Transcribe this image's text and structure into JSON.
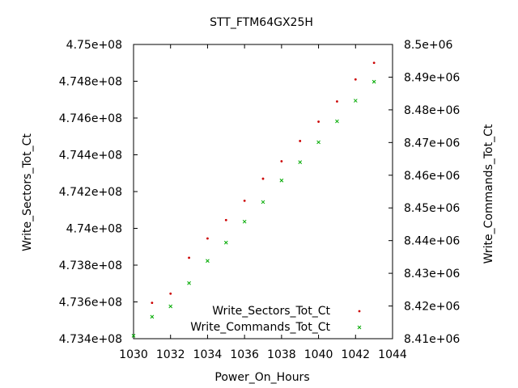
{
  "chart_data": {
    "type": "scatter",
    "title": "STT_FTM64GX25H",
    "xlabel": "Power_On_Hours",
    "ylabel": "Write_Sectors_Tot_Ct",
    "y2label": "Write_Commands_Tot_Ct",
    "xlim": [
      1030,
      1044
    ],
    "ylim": [
      473400000,
      475000000
    ],
    "y2lim": [
      8410000,
      8500000
    ],
    "xticks": [
      "1030",
      "1032",
      "1034",
      "1036",
      "1038",
      "1040",
      "1042",
      "1044"
    ],
    "yticks": [
      "4.734e+08",
      "4.736e+08",
      "4.738e+08",
      "4.74e+08",
      "4.742e+08",
      "4.744e+08",
      "4.746e+08",
      "4.748e+08",
      "4.75e+08"
    ],
    "y2ticks": [
      "8.41e+06",
      "8.42e+06",
      "8.43e+06",
      "8.44e+06",
      "8.45e+06",
      "8.46e+06",
      "8.47e+06",
      "8.48e+06",
      "8.49e+06",
      "8.5e+06"
    ],
    "grid": false,
    "legend_position": "bottom-right",
    "series": [
      {
        "name": "Write_Sectors_Tot_Ct",
        "axis": "left",
        "color": "#cc0000",
        "marker": "dot",
        "x": [
          1031,
          1032,
          1033,
          1034,
          1035,
          1036,
          1037,
          1038,
          1039,
          1040,
          1041,
          1042,
          1043
        ],
        "y": [
          473595000,
          473645000,
          473840000,
          473945000,
          474045000,
          474150000,
          474270000,
          474365000,
          474475000,
          474580000,
          474690000,
          474810000,
          474900000
        ]
      },
      {
        "name": "Write_Commands_Tot_Ct",
        "axis": "right",
        "color": "#00aa00",
        "marker": "x",
        "x": [
          1030,
          1031,
          1032,
          1033,
          1034,
          1035,
          1036,
          1037,
          1038,
          1039,
          1040,
          1041,
          1042,
          1043
        ],
        "y": [
          8410900,
          8416700,
          8419900,
          8427000,
          8433800,
          8439400,
          8445800,
          8451800,
          8458400,
          8464000,
          8470100,
          8476500,
          8482800,
          8488600
        ]
      }
    ]
  }
}
